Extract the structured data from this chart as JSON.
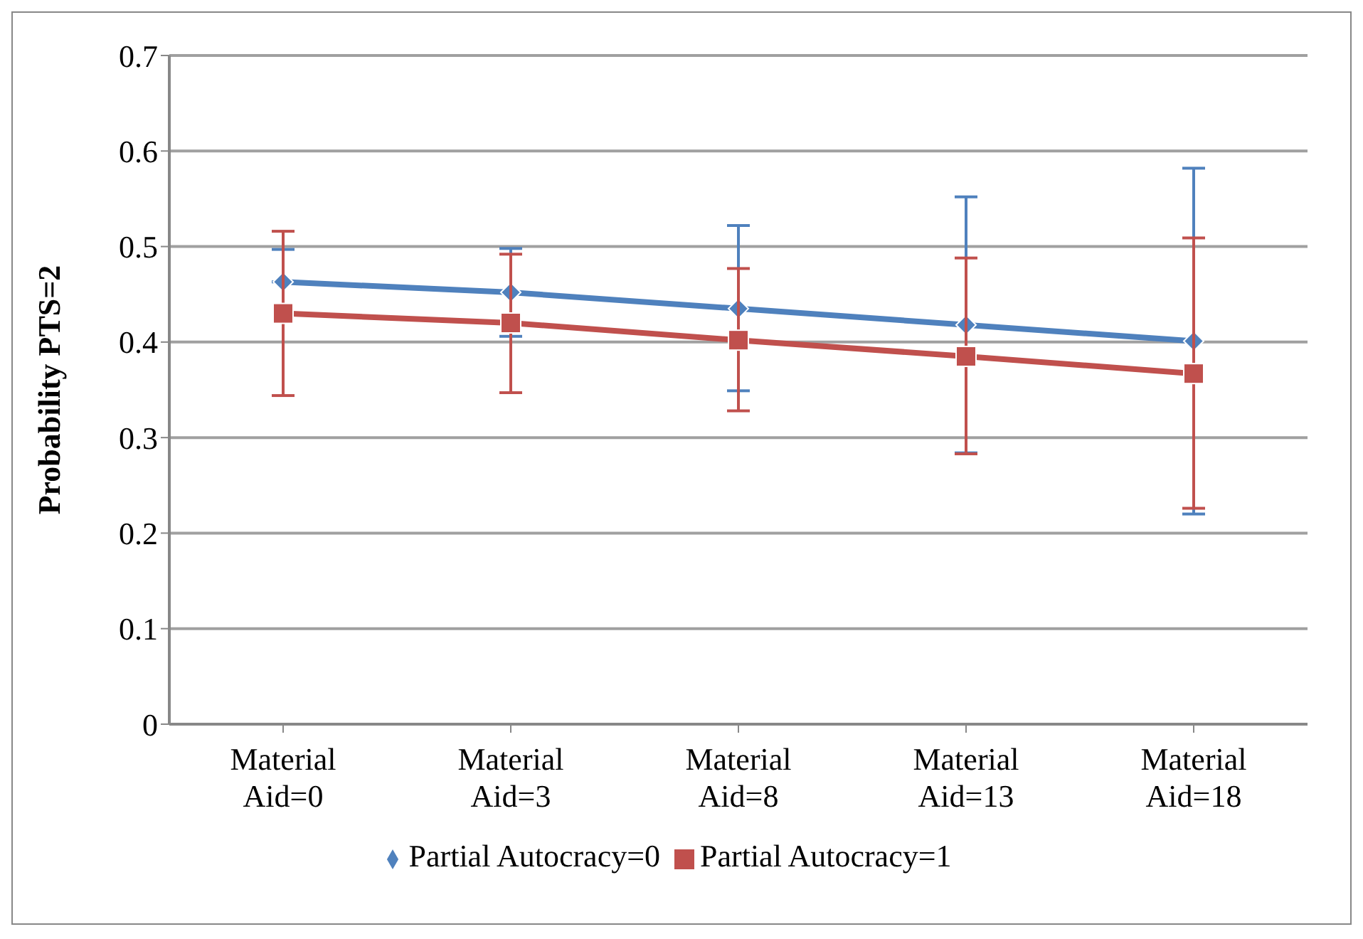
{
  "chart_data": {
    "type": "line",
    "ylabel": "Probability PTS=2",
    "categories": [
      "Material Aid=0",
      "Material Aid=3",
      "Material Aid=8",
      "Material Aid=13",
      "Material Aid=18"
    ],
    "series": [
      {
        "name": "Partial Autocracy=0",
        "color": "#4f81bd",
        "marker": "diamond",
        "values": [
          0.463,
          0.452,
          0.435,
          0.418,
          0.401
        ],
        "errors": [
          [
            0.463,
            0.497
          ],
          [
            0.406,
            0.498
          ],
          [
            0.349,
            0.522
          ],
          [
            0.284,
            0.552
          ],
          [
            0.22,
            0.582
          ]
        ]
      },
      {
        "name": "Partial Autocracy=1",
        "color": "#c0504d",
        "marker": "square",
        "values": [
          0.43,
          0.42,
          0.402,
          0.385,
          0.367
        ],
        "errors": [
          [
            0.344,
            0.516
          ],
          [
            0.347,
            0.492
          ],
          [
            0.328,
            0.477
          ],
          [
            0.283,
            0.488
          ],
          [
            0.226,
            0.509
          ]
        ]
      }
    ],
    "ylim": [
      0,
      0.7
    ],
    "yticks": [
      0,
      0.1,
      0.2,
      0.3,
      0.4,
      0.5,
      0.6,
      0.7
    ],
    "grid": "y",
    "legend": "bottom",
    "line_style": "solid"
  }
}
